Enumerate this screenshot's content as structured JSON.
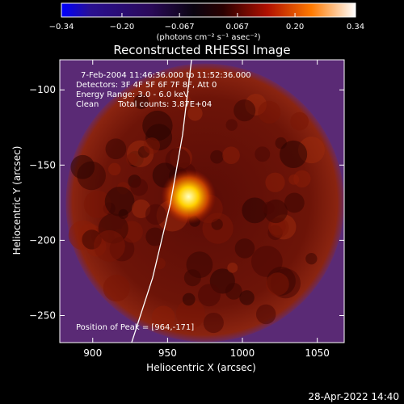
{
  "chart_data": {
    "type": "heatmap",
    "title": "Reconstructed RHESSI Image",
    "xlabel": "Heliocentric X (arcsec)",
    "ylabel": "Heliocentric Y (arcsec)",
    "xlim": [
      878,
      1068
    ],
    "ylim": [
      -268,
      -80
    ],
    "x_ticks": [
      900,
      950,
      1000,
      1050
    ],
    "y_ticks": [
      -250,
      -200,
      -150,
      -100
    ],
    "x_tick_labels": [
      "900",
      "950",
      "1000",
      "1050"
    ],
    "y_tick_labels": [
      "−250",
      "−200",
      "−150",
      "−100"
    ],
    "colorbar": {
      "min": -0.34,
      "max": 0.34,
      "ticks": [
        -0.34,
        -0.2,
        -0.067,
        0.067,
        0.2,
        0.34
      ],
      "tick_labels": [
        "−0.34",
        "−0.20",
        "−0.067",
        "0.067",
        "0.20",
        "0.34"
      ],
      "unit_label": "(photons cm⁻² s⁻¹ asec⁻²)"
    },
    "annotations": {
      "time_range": "7-Feb-2004 11:46:36.000 to 11:52:36.000",
      "detectors": "Detectors: 3F 4F 5F 6F 7F 8F, Att 0",
      "energy": "Energy Range: 3.0 - 6.0 keV",
      "method": "Clean",
      "counts": "Total counts: 3.87E+04",
      "peak": "Position of Peak = [964,-171]"
    },
    "peak": {
      "x": 964,
      "y": -171
    },
    "source_region": {
      "center_x": 975,
      "center_y": -175,
      "radius": 93
    },
    "limb_curve": [
      [
        926,
        -268
      ],
      [
        940,
        -225
      ],
      [
        952,
        -175
      ],
      [
        960,
        -130
      ],
      [
        966,
        -80
      ]
    ],
    "colors": {
      "background": "#5a2a75",
      "disk": "#7a1a0a",
      "peak": "#ffffa0",
      "limb": "#ffffff"
    }
  },
  "footer": {
    "datetime": "28-Apr-2022 14:40"
  }
}
